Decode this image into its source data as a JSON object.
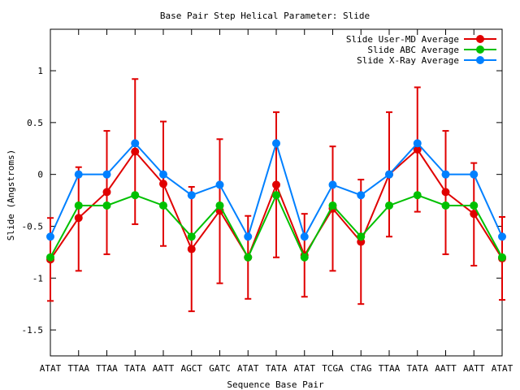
{
  "chart_data": {
    "type": "line",
    "title": "Base Pair Step Helical Parameter: Slide",
    "xlabel": "Sequence Base Pair",
    "ylabel": "Slide (Angstroms)",
    "ylim": [
      -1.75,
      1.4
    ],
    "yticks": [
      {
        "value": 1,
        "label": "1"
      },
      {
        "value": 0.5,
        "label": "0.5"
      },
      {
        "value": 0,
        "label": "0"
      },
      {
        "value": -0.5,
        "label": "-0.5"
      },
      {
        "value": -1,
        "label": "-1"
      },
      {
        "value": -1.5,
        "label": "-1.5"
      }
    ],
    "categories": [
      "ATAT",
      "TTAA",
      "TTAA",
      "TATA",
      "AATT",
      "AGCT",
      "GATC",
      "ATAT",
      "TATA",
      "ATAT",
      "TCGA",
      "CTAG",
      "TTAA",
      "TATA",
      "AATT",
      "AATT",
      "ATAT"
    ],
    "grid": false,
    "legend_position": "top-right",
    "series": [
      {
        "name": "Slide User-MD Average",
        "color": "#e00000",
        "values": [
          -0.82,
          -0.42,
          -0.17,
          0.22,
          -0.09,
          -0.72,
          -0.35,
          -0.8,
          -0.1,
          -0.78,
          -0.33,
          -0.65,
          0.0,
          0.24,
          -0.17,
          -0.38,
          -0.81
        ],
        "err_low": [
          -1.22,
          -0.93,
          -0.77,
          -0.48,
          -0.69,
          -1.32,
          -1.05,
          -1.2,
          -0.8,
          -1.18,
          -0.93,
          -1.25,
          -0.6,
          -0.36,
          -0.77,
          -0.88,
          -1.21
        ],
        "err_high": [
          -0.42,
          0.07,
          0.42,
          0.92,
          0.51,
          -0.12,
          0.34,
          -0.4,
          0.6,
          -0.38,
          0.27,
          -0.05,
          0.6,
          0.84,
          0.42,
          0.11,
          -0.41
        ]
      },
      {
        "name": "Slide ABC Average",
        "color": "#00c000",
        "values": [
          -0.8,
          -0.3,
          -0.3,
          -0.2,
          -0.3,
          -0.6,
          -0.3,
          -0.8,
          -0.2,
          -0.8,
          -0.3,
          -0.6,
          -0.3,
          -0.2,
          -0.3,
          -0.3,
          -0.8
        ]
      },
      {
        "name": "Slide X-Ray Average",
        "color": "#0080ff",
        "values": [
          -0.6,
          0.0,
          0.0,
          0.3,
          0.0,
          -0.2,
          -0.1,
          -0.6,
          0.3,
          -0.6,
          -0.1,
          -0.2,
          0.0,
          0.3,
          0.0,
          0.0,
          -0.6
        ]
      }
    ]
  }
}
